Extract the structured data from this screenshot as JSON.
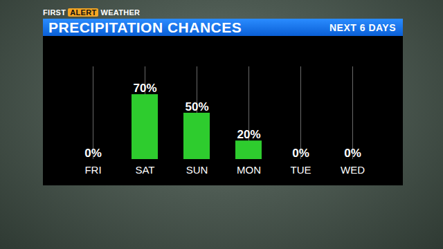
{
  "chart_data": {
    "type": "bar",
    "title": "PRECIPITATION CHANCES",
    "subtitle": "NEXT 6 DAYS",
    "annotations": [
      "FIRST",
      "ALERT",
      "WEATHER"
    ],
    "categories": [
      "FRI",
      "SAT",
      "SUN",
      "MON",
      "TUE",
      "WED"
    ],
    "values": [
      0,
      70,
      50,
      20,
      0,
      0
    ],
    "value_labels": [
      "0%",
      "70%",
      "50%",
      "20%",
      "0%",
      "0%"
    ],
    "color": "#2ecc2e",
    "ylim": [
      0,
      100
    ],
    "grid": true,
    "data_labels": true,
    "tick_labels": "x"
  }
}
